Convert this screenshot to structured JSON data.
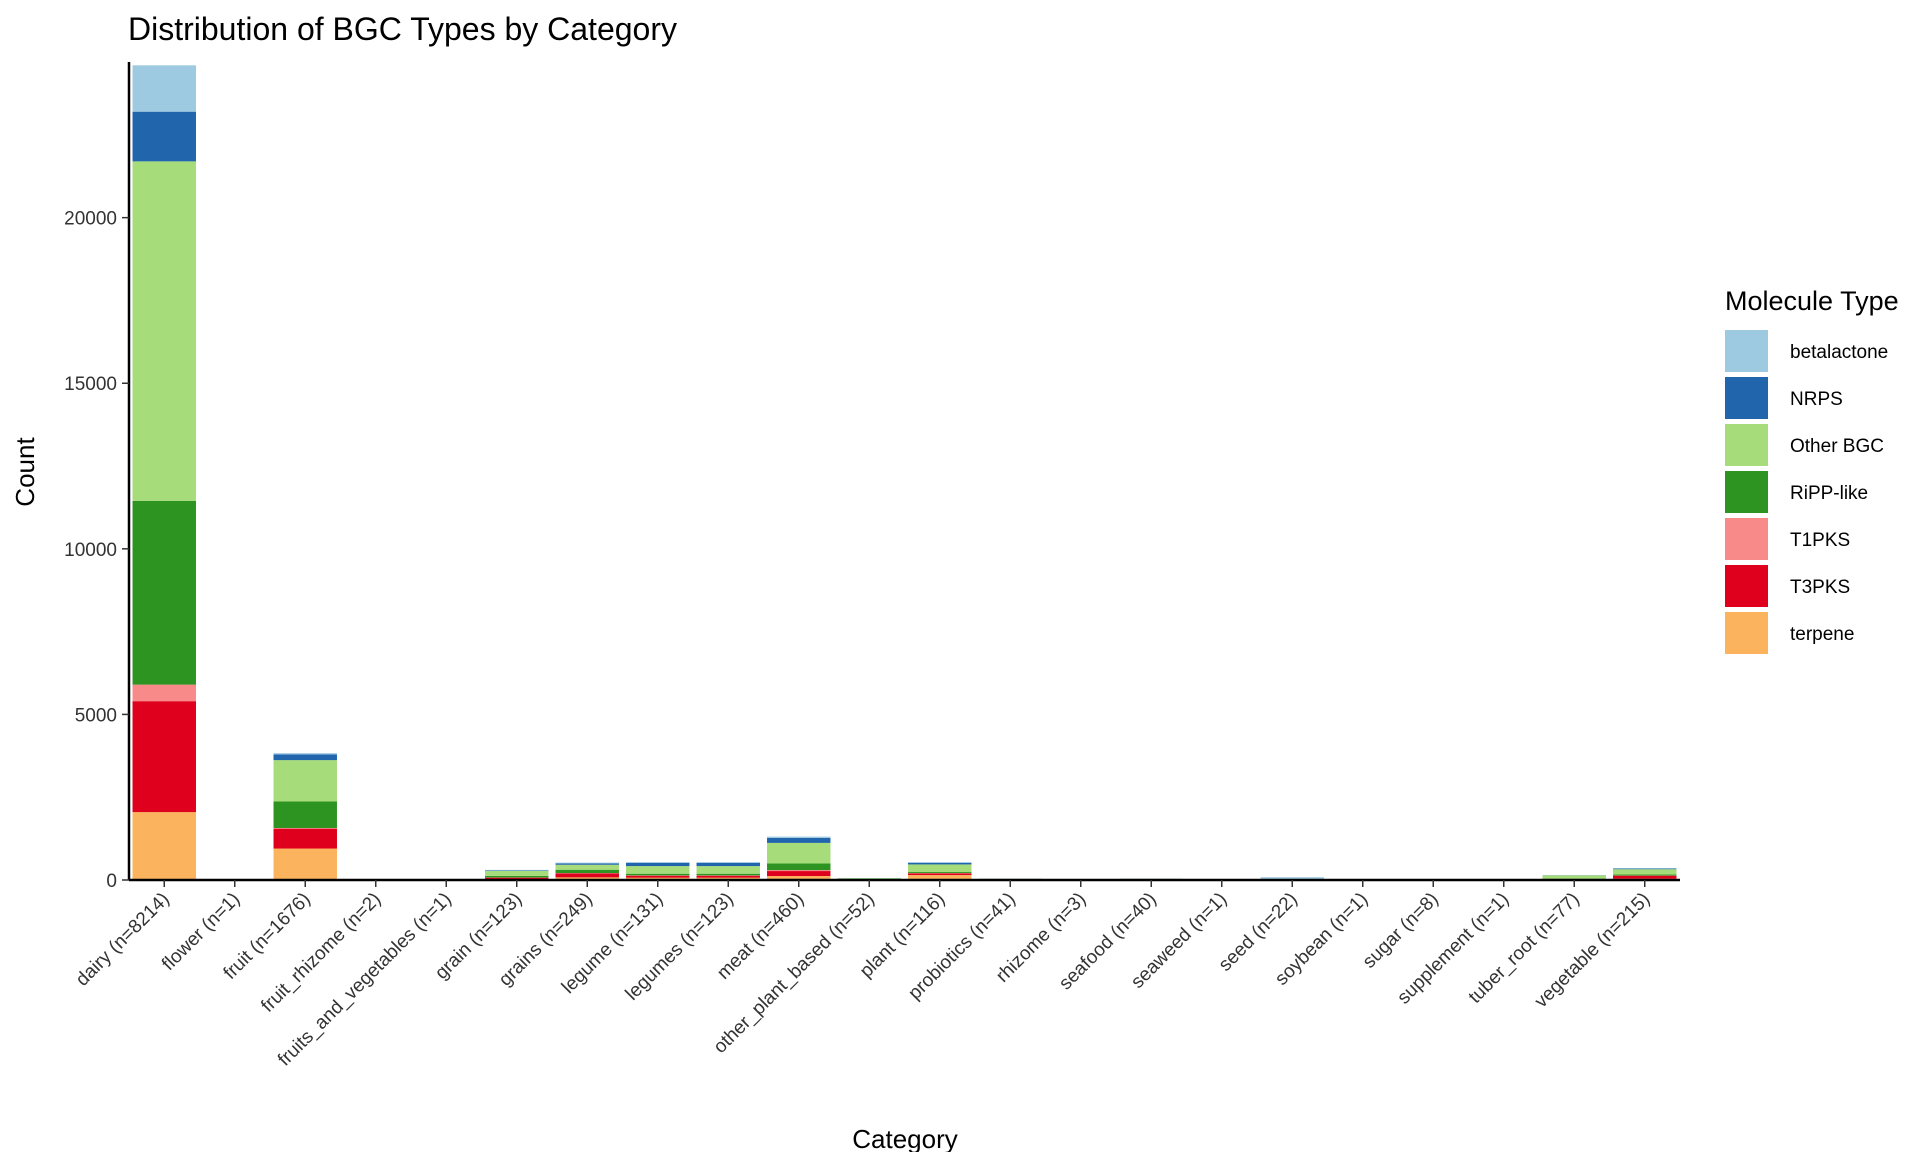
{
  "chart_data": {
    "type": "bar",
    "stacked": true,
    "title": "Distribution of BGC Types by Category",
    "xlabel": "Category",
    "ylabel": "Count",
    "ylim": [
      0,
      24700
    ],
    "yticks": [
      "0",
      "5000",
      "10000",
      "15000",
      "20000"
    ],
    "grid": false,
    "legend": {
      "title": "Molecule Type",
      "position": "right"
    },
    "categories": [
      "dairy (n=8214)",
      "flower (n=1)",
      "fruit (n=1676)",
      "fruit_rhizome (n=2)",
      "fruits_and_vegetables (n=1)",
      "grain (n=123)",
      "grains (n=249)",
      "legume (n=131)",
      "legumes (n=123)",
      "meat (n=460)",
      "other_plant_based (n=52)",
      "plant (n=116)",
      "probiotics (n=41)",
      "rhizome (n=3)",
      "seafood (n=40)",
      "seaweed (n=1)",
      "seed (n=22)",
      "soybean (n=1)",
      "sugar (n=8)",
      "supplement (n=1)",
      "tuber_root (n=77)",
      "vegetable (n=215)"
    ],
    "series": [
      {
        "name": "betalactone",
        "color": "#9ecae1",
        "values": [
          1400,
          0,
          40,
          0,
          0,
          15,
          25,
          20,
          20,
          40,
          3,
          20,
          2,
          0,
          3,
          0,
          60,
          0,
          0,
          0,
          5,
          15
        ]
      },
      {
        "name": "NRPS",
        "color": "#2166ac",
        "values": [
          1500,
          0,
          170,
          0,
          0,
          15,
          40,
          100,
          100,
          150,
          3,
          50,
          2,
          0,
          2,
          0,
          10,
          0,
          0,
          0,
          5,
          20
        ]
      },
      {
        "name": "Other BGC",
        "color": "#a6dc7a",
        "values": [
          10250,
          2,
          1250,
          3,
          1,
          150,
          150,
          230,
          230,
          620,
          30,
          230,
          20,
          3,
          25,
          1,
          10,
          1,
          5,
          1,
          100,
          160
        ]
      },
      {
        "name": "RiPP-like",
        "color": "#2e9421",
        "values": [
          5550,
          0,
          800,
          1,
          0,
          50,
          100,
          50,
          50,
          200,
          10,
          30,
          10,
          0,
          5,
          0,
          2,
          0,
          2,
          0,
          20,
          30
        ]
      },
      {
        "name": "T1PKS",
        "color": "#f88a8a",
        "values": [
          500,
          0,
          20,
          0,
          0,
          5,
          10,
          10,
          10,
          30,
          2,
          10,
          1,
          0,
          1,
          0,
          0,
          0,
          0,
          0,
          2,
          5
        ]
      },
      {
        "name": "T3PKS",
        "color": "#de001c",
        "values": [
          3350,
          0,
          600,
          0,
          0,
          40,
          120,
          60,
          60,
          150,
          5,
          50,
          3,
          0,
          2,
          0,
          1,
          0,
          1,
          0,
          10,
          90
        ]
      },
      {
        "name": "terpene",
        "color": "#fbb35e",
        "values": [
          2050,
          0,
          950,
          0,
          0,
          30,
          80,
          70,
          70,
          120,
          8,
          150,
          3,
          0,
          3,
          0,
          2,
          0,
          1,
          0,
          8,
          40
        ]
      }
    ]
  }
}
